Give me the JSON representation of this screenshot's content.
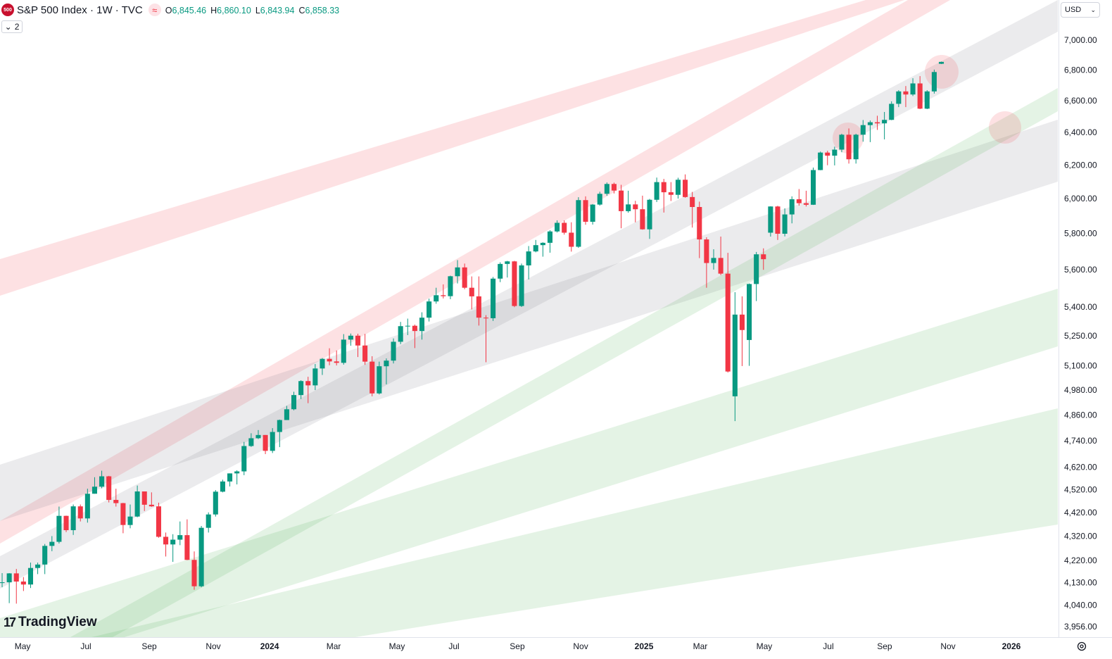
{
  "header": {
    "title": "S&P 500 Index · 1W · TVC",
    "logo": "500",
    "legend": [
      {
        "key": "O",
        "value": "6,845.46"
      },
      {
        "key": "H",
        "value": "6,860.10"
      },
      {
        "key": "L",
        "value": "6,843.94"
      },
      {
        "key": "C",
        "value": "6,858.33"
      }
    ],
    "indicators": 2,
    "currency": "USD",
    "brand": "TradingView"
  },
  "chart_data": {
    "type": "candlestick",
    "up_color": "#089981",
    "down_color": "#f23645",
    "log_scale": true,
    "grid": false,
    "ylim": [
      3918,
      7284
    ],
    "xlim": [
      -0.3,
      148.37
    ],
    "yticks": [
      {
        "value": 7000,
        "label": "7,000.00"
      },
      {
        "value": 6800,
        "label": "6,800.00"
      },
      {
        "value": 6600,
        "label": "6,600.00"
      },
      {
        "value": 6400,
        "label": "6,400.00"
      },
      {
        "value": 6200,
        "label": "6,200.00"
      },
      {
        "value": 6000,
        "label": "6,000.00"
      },
      {
        "value": 5800,
        "label": "5,800.00"
      },
      {
        "value": 5600,
        "label": "5,600.00"
      },
      {
        "value": 5400,
        "label": "5,400.00"
      },
      {
        "value": 5250,
        "label": "5,250.00"
      },
      {
        "value": 5100,
        "label": "5,100.00"
      },
      {
        "value": 4980,
        "label": "4,980.00"
      },
      {
        "value": 4860,
        "label": "4,860.00"
      },
      {
        "value": 4740,
        "label": "4,740.00"
      },
      {
        "value": 4620,
        "label": "4,620.00"
      },
      {
        "value": 4520,
        "label": "4,520.00"
      },
      {
        "value": 4420,
        "label": "4,420.00"
      },
      {
        "value": 4320,
        "label": "4,320.00"
      },
      {
        "value": 4220,
        "label": "4,220.00"
      },
      {
        "value": 4130,
        "label": "4,130.00"
      },
      {
        "value": 4040,
        "label": "4,040.00"
      },
      {
        "value": 3956,
        "label": "3,956.00"
      }
    ],
    "xticks": [
      {
        "value": 2.87,
        "label": "May"
      },
      {
        "value": 11.77,
        "label": "Jul"
      },
      {
        "value": 20.67,
        "label": "Sep"
      },
      {
        "value": 29.67,
        "label": "Nov"
      },
      {
        "value": 37.59,
        "label": "2024"
      },
      {
        "value": 46.59,
        "label": "Mar"
      },
      {
        "value": 55.49,
        "label": "May"
      },
      {
        "value": 63.5,
        "label": "Jul"
      },
      {
        "value": 72.4,
        "label": "Sep"
      },
      {
        "value": 81.31,
        "label": "Nov"
      },
      {
        "value": 90.21,
        "label": "2025"
      },
      {
        "value": 98.12,
        "label": "Mar"
      },
      {
        "value": 107.12,
        "label": "May"
      },
      {
        "value": 116.12,
        "label": "Jul"
      },
      {
        "value": 124.03,
        "label": "Sep"
      },
      {
        "value": 132.94,
        "label": "Nov"
      },
      {
        "value": 141.84,
        "label": "2026"
      }
    ],
    "open": [
      4130,
      4133,
      4169,
      4136,
      4124,
      4191,
      4205,
      4282,
      4299,
      4409,
      4348,
      4450,
      4398,
      4505,
      4536,
      4582,
      4478,
      4464,
      4370,
      4406,
      4515,
      4457,
      4450,
      4320,
      4288,
      4308,
      4327,
      4224,
      4117,
      4358,
      4415,
      4514,
      4559,
      4595,
      4604,
      4719,
      4755,
      4770,
      4697,
      4784,
      4840,
      4891,
      4959,
      5027,
      5006,
      5089,
      5137,
      5124,
      5117,
      5234,
      5254,
      5204,
      5123,
      4967,
      5100,
      5128,
      5223,
      5303,
      5305,
      5278,
      5347,
      5432,
      5465,
      5460,
      5567,
      5615,
      5505,
      5459,
      5347,
      5344,
      5554,
      5634,
      5648,
      5408,
      5626,
      5703,
      5738,
      5751,
      5815,
      5864,
      5808,
      5729,
      5995,
      5870,
      5969,
      6032,
      6090,
      6051,
      5931,
      5970,
      5942,
      5827,
      5997,
      6101,
      6041,
      6026,
      6115,
      6013,
      5955,
      5770,
      5639,
      5667,
      5581,
      4953,
      5363,
      5232,
      5525,
      5687,
      5808,
      5958,
      5802,
      5912,
      6000,
      5977,
      5968,
      6173,
      6279,
      6260,
      6297,
      6389,
      6238,
      6389,
      6449,
      6467,
      6460,
      6482,
      6584,
      6664,
      6644,
      6716,
      6553,
      6664,
      6845.46
    ],
    "high": [
      4170,
      4170,
      4187,
      4154,
      4213,
      4213,
      4290,
      4323,
      4449,
      4410,
      4458,
      4458,
      4527,
      4578,
      4607,
      4584,
      4527,
      4465,
      4458,
      4541,
      4515,
      4511,
      4466,
      4338,
      4331,
      4385,
      4394,
      4259,
      4366,
      4424,
      4521,
      4567,
      4595,
      4609,
      4738,
      4778,
      4793,
      4770,
      4802,
      4842,
      4907,
      4975,
      5031,
      5048,
      5111,
      5141,
      5190,
      5179,
      5262,
      5265,
      5264,
      5263,
      5150,
      5123,
      5139,
      5240,
      5325,
      5342,
      5311,
      5375,
      5447,
      5505,
      5523,
      5570,
      5655,
      5636,
      5566,
      5566,
      5360,
      5563,
      5643,
      5651,
      5651,
      5636,
      5733,
      5767,
      5754,
      5822,
      5878,
      5878,
      5867,
      6012,
      6017,
      5972,
      6044,
      6099,
      6098,
      6085,
      6050,
      5991,
      6021,
      6002,
      6128,
      6120,
      6101,
      6127,
      6147,
      6043,
      5986,
      5782,
      5715,
      5786,
      5695,
      5481,
      5459,
      5528,
      5700,
      5720,
      5959,
      5962,
      5947,
      6017,
      6060,
      6050,
      6188,
      6285,
      6290,
      6315,
      6395,
      6428,
      6395,
      6481,
      6478,
      6508,
      6532,
      6600,
      6672,
      6699,
      6750,
      6764,
      6672,
      6807,
      6860.1
    ],
    "low": [
      4113,
      4050,
      4048,
      4098,
      4110,
      4166,
      4166,
      4260,
      4292,
      4340,
      4328,
      4385,
      4380,
      4505,
      4529,
      4467,
      4449,
      4335,
      4356,
      4403,
      4430,
      4448,
      4316,
      4238,
      4216,
      4285,
      4223,
      4103,
      4113,
      4338,
      4406,
      4511,
      4537,
      4546,
      4587,
      4715,
      4751,
      4682,
      4687,
      4714,
      4840,
      4886,
      4940,
      4920,
      4983,
      5057,
      5105,
      5104,
      5108,
      5203,
      5146,
      5107,
      4953,
      4962,
      5011,
      5114,
      5211,
      5257,
      5191,
      5234,
      5327,
      5420,
      5448,
      5444,
      5528,
      5497,
      5390,
      5306,
      5120,
      5330,
      5535,
      5560,
      5402,
      5403,
      5550,
      5698,
      5674,
      5696,
      5809,
      5797,
      5702,
      5723,
      5853,
      5854,
      5963,
      6020,
      6034,
      5833,
      5922,
      5867,
      5825,
      5773,
      5984,
      5923,
      5990,
      6004,
      6009,
      5837,
      5666,
      5505,
      5603,
      5573,
      5069,
      4835,
      5101,
      5102,
      5434,
      5602,
      5786,
      5767,
      5787,
      5861,
      5963,
      5958,
      5967,
      6172,
      6202,
      6201,
      6281,
      6212,
      6212,
      6346,
      6343,
      6419,
      6360,
      6480,
      6563,
      6563,
      6634,
      6550,
      6550,
      6650,
      6843.94
    ],
    "close": [
      4133,
      4169,
      4136,
      4124,
      4191,
      4205,
      4282,
      4299,
      4409,
      4348,
      4450,
      4398,
      4505,
      4536,
      4582,
      4478,
      4464,
      4370,
      4406,
      4515,
      4457,
      4450,
      4320,
      4288,
      4308,
      4327,
      4224,
      4117,
      4358,
      4415,
      4514,
      4559,
      4595,
      4604,
      4719,
      4755,
      4770,
      4697,
      4784,
      4840,
      4891,
      4959,
      5027,
      5006,
      5089,
      5137,
      5124,
      5117,
      5234,
      5254,
      5204,
      5123,
      4967,
      5100,
      5128,
      5223,
      5303,
      5305,
      5278,
      5347,
      5432,
      5465,
      5460,
      5567,
      5615,
      5505,
      5459,
      5347,
      5344,
      5554,
      5634,
      5648,
      5408,
      5626,
      5703,
      5738,
      5751,
      5815,
      5864,
      5808,
      5729,
      5995,
      5870,
      5969,
      6032,
      6090,
      6051,
      5931,
      5970,
      5942,
      5827,
      5997,
      6101,
      6041,
      6026,
      6115,
      6013,
      5955,
      5770,
      5639,
      5667,
      5581,
      5074,
      5363,
      5283,
      5525,
      5687,
      5660,
      5958,
      5802,
      5912,
      6000,
      5977,
      5968,
      6173,
      6279,
      6260,
      6297,
      6389,
      6238,
      6389,
      6449,
      6467,
      6460,
      6482,
      6584,
      6664,
      6644,
      6716,
      6553,
      6664,
      6791,
      6858.33
    ]
  }
}
